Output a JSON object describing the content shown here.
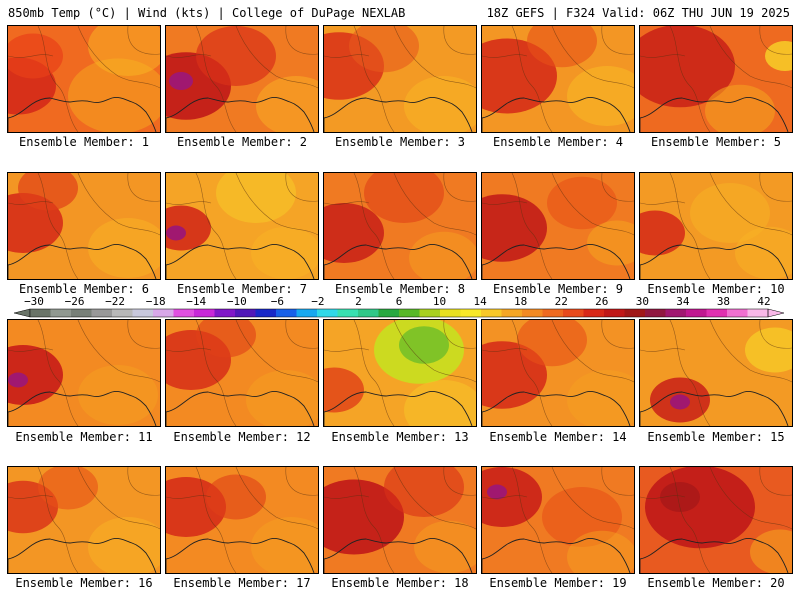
{
  "header": {
    "left": "850mb Temp (°C) | Wind (kts) | College of DuPage NEXLAB",
    "right": "18Z GEFS | F324 Valid: 06Z THU JUN 19 2025"
  },
  "panels": [
    {
      "label": "Ensemble Member: 1",
      "bg": "#f06a20",
      "hot": [
        [
          10,
          60,
          38,
          0.9,
          "#d42a18"
        ],
        [
          25,
          30,
          30,
          0.7,
          "#e84018"
        ],
        [
          110,
          70,
          50,
          0.6,
          "#f5a020"
        ],
        [
          120,
          20,
          40,
          0.5,
          "#f9b824"
        ]
      ]
    },
    {
      "label": "Ensemble Member: 2",
      "bg": "#f07a22",
      "hot": [
        [
          20,
          60,
          45,
          0.9,
          "#c01818"
        ],
        [
          15,
          55,
          12,
          1,
          "#a01870"
        ],
        [
          70,
          30,
          40,
          0.7,
          "#d83018"
        ],
        [
          130,
          80,
          40,
          0.6,
          "#f9a824"
        ]
      ]
    },
    {
      "label": "Ensemble Member: 3",
      "bg": "#f39a24",
      "hot": [
        [
          15,
          40,
          45,
          0.85,
          "#d83018"
        ],
        [
          60,
          20,
          35,
          0.6,
          "#e85a1c"
        ],
        [
          120,
          80,
          40,
          0.6,
          "#f9b424"
        ]
      ]
    },
    {
      "label": "Ensemble Member: 4",
      "bg": "#f39624",
      "hot": [
        [
          25,
          50,
          50,
          0.85,
          "#d42818"
        ],
        [
          80,
          15,
          35,
          0.6,
          "#e85018"
        ],
        [
          125,
          70,
          40,
          0.6,
          "#f9b824"
        ]
      ]
    },
    {
      "label": "Ensemble Member: 5",
      "bg": "#ee6a20",
      "hot": [
        [
          40,
          40,
          55,
          0.85,
          "#c82018"
        ],
        [
          145,
          30,
          20,
          0.8,
          "#f7d428"
        ],
        [
          100,
          85,
          35,
          0.6,
          "#f5a020"
        ]
      ]
    },
    {
      "label": "Ensemble Member: 6",
      "bg": "#f39624",
      "hot": [
        [
          15,
          50,
          40,
          0.85,
          "#d42818"
        ],
        [
          40,
          15,
          30,
          0.7,
          "#e04018"
        ],
        [
          120,
          75,
          40,
          0.5,
          "#f9b424"
        ]
      ]
    },
    {
      "label": "Ensemble Member: 7",
      "bg": "#f5a426",
      "hot": [
        [
          15,
          55,
          30,
          0.85,
          "#d02418"
        ],
        [
          10,
          60,
          10,
          1,
          "#a01870"
        ],
        [
          90,
          20,
          40,
          0.6,
          "#f7c828"
        ],
        [
          120,
          80,
          35,
          0.5,
          "#f9b424"
        ]
      ]
    },
    {
      "label": "Ensemble Member: 8",
      "bg": "#f07a22",
      "hot": [
        [
          20,
          60,
          40,
          0.85,
          "#c82018"
        ],
        [
          80,
          20,
          40,
          0.6,
          "#e04018"
        ],
        [
          120,
          85,
          35,
          0.5,
          "#f5a020"
        ]
      ]
    },
    {
      "label": "Ensemble Member: 9",
      "bg": "#f07a22",
      "hot": [
        [
          20,
          55,
          45,
          0.85,
          "#c01818"
        ],
        [
          100,
          30,
          35,
          0.6,
          "#e85018"
        ],
        [
          135,
          70,
          30,
          0.6,
          "#f5a020"
        ]
      ]
    },
    {
      "label": "Ensemble Member: 10",
      "bg": "#f39a24",
      "hot": [
        [
          15,
          60,
          30,
          0.85,
          "#d42818"
        ],
        [
          90,
          40,
          40,
          0.5,
          "#f7b424"
        ],
        [
          130,
          80,
          35,
          0.5,
          "#f9b424"
        ]
      ]
    },
    {
      "label": "Ensemble Member: 11",
      "bg": "#f38a22",
      "hot": [
        [
          15,
          55,
          40,
          0.9,
          "#c81c18"
        ],
        [
          10,
          60,
          10,
          1,
          "#a01870"
        ],
        [
          110,
          75,
          40,
          0.5,
          "#f5a020"
        ]
      ]
    },
    {
      "label": "Ensemble Member: 12",
      "bg": "#f38a22",
      "hot": [
        [
          25,
          40,
          40,
          0.8,
          "#d42818"
        ],
        [
          60,
          15,
          30,
          0.6,
          "#e04018"
        ],
        [
          120,
          80,
          40,
          0.5,
          "#f5a020"
        ]
      ]
    },
    {
      "label": "Ensemble Member: 13",
      "bg": "#f5a426",
      "hot": [
        [
          95,
          30,
          45,
          0.9,
          "#c8e020"
        ],
        [
          100,
          25,
          25,
          0.9,
          "#78c028"
        ],
        [
          10,
          70,
          30,
          0.8,
          "#e04018"
        ],
        [
          120,
          90,
          40,
          0.5,
          "#f7c828"
        ]
      ]
    },
    {
      "label": "Ensemble Member: 14",
      "bg": "#f39224",
      "hot": [
        [
          20,
          55,
          45,
          0.85,
          "#d42818"
        ],
        [
          70,
          20,
          35,
          0.6,
          "#e85018"
        ],
        [
          125,
          80,
          40,
          0.5,
          "#f5a020"
        ]
      ]
    },
    {
      "label": "Ensemble Member: 15",
      "bg": "#f39a24",
      "hot": [
        [
          40,
          80,
          30,
          0.85,
          "#c82018"
        ],
        [
          40,
          82,
          10,
          1,
          "#a01870"
        ],
        [
          135,
          30,
          30,
          0.7,
          "#f7d028"
        ]
      ]
    },
    {
      "label": "Ensemble Member: 16",
      "bg": "#f39624",
      "hot": [
        [
          15,
          40,
          35,
          0.8,
          "#d83018"
        ],
        [
          60,
          20,
          30,
          0.6,
          "#e85018"
        ],
        [
          120,
          80,
          40,
          0.5,
          "#f9b424"
        ]
      ]
    },
    {
      "label": "Ensemble Member: 17",
      "bg": "#f38a22",
      "hot": [
        [
          20,
          40,
          40,
          0.85,
          "#d42818"
        ],
        [
          70,
          30,
          30,
          0.6,
          "#e04018"
        ],
        [
          125,
          80,
          40,
          0.5,
          "#f5a020"
        ]
      ]
    },
    {
      "label": "Ensemble Member: 18",
      "bg": "#f07a22",
      "hot": [
        [
          30,
          50,
          50,
          0.9,
          "#c01818"
        ],
        [
          100,
          20,
          40,
          0.6,
          "#d83018"
        ],
        [
          125,
          80,
          35,
          0.5,
          "#f5a020"
        ]
      ]
    },
    {
      "label": "Ensemble Member: 19",
      "bg": "#f07a22",
      "hot": [
        [
          20,
          30,
          40,
          0.85,
          "#c81c18"
        ],
        [
          15,
          25,
          10,
          1,
          "#a01870"
        ],
        [
          100,
          50,
          40,
          0.6,
          "#e85018"
        ],
        [
          120,
          90,
          35,
          0.5,
          "#f5a020"
        ]
      ]
    },
    {
      "label": "Ensemble Member: 20",
      "bg": "#e85a20",
      "hot": [
        [
          60,
          40,
          55,
          0.9,
          "#c01818"
        ],
        [
          40,
          30,
          20,
          0.8,
          "#a81818"
        ],
        [
          140,
          85,
          30,
          0.6,
          "#f5a020"
        ]
      ]
    }
  ],
  "colorbar": {
    "labels": [
      "−30",
      "−26",
      "−22",
      "−18",
      "−14",
      "−10",
      "−6",
      "−2",
      "2",
      "6",
      "10",
      "14",
      "18",
      "22",
      "26",
      "30",
      "34",
      "38",
      "42"
    ],
    "colors": [
      "#6a7468",
      "#909890",
      "#788078",
      "#989898",
      "#b8b8b8",
      "#c8c8dc",
      "#d8a8e8",
      "#e050e0",
      "#c828d8",
      "#8018c8",
      "#5018b8",
      "#1828c8",
      "#1860e8",
      "#18a8f0",
      "#30d8e8",
      "#38e0b0",
      "#30c888",
      "#28a840",
      "#58b828",
      "#a8d020",
      "#e8e020",
      "#f8e828",
      "#f8c828",
      "#f5a624",
      "#f38a22",
      "#ee6a20",
      "#e84a1c",
      "#d82818",
      "#c01818",
      "#a01818",
      "#901840",
      "#a01870",
      "#c01890",
      "#e030b0",
      "#f070d0",
      "#f8b8e8"
    ]
  }
}
